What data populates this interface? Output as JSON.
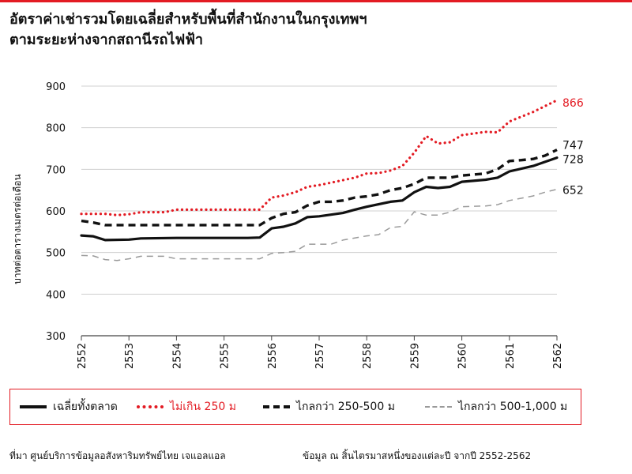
{
  "header": {
    "title_line1": "อัตราค่าเช่ารวมโดยเฉลี่ยสำหรับพื้นที่สำนักงานในกรุงเทพฯ",
    "title_line2": "ตามระยะห่างจากสถานีรถไฟฟ้า"
  },
  "colors": {
    "accent_red": "#e31b23",
    "black": "#111111",
    "gray": "#9a9a9a"
  },
  "chart_data": {
    "type": "line",
    "title": "อัตราค่าเช่ารวมโดยเฉลี่ยสำหรับพื้นที่สำนักงานในกรุงเทพฯ ตามระยะห่างจากสถานีรถไฟฟ้า",
    "ylabel": "บาทต่อตารางเมตรต่อเดือน",
    "xlabel": "",
    "ylim": [
      300,
      900
    ],
    "yticks": [
      300,
      400,
      500,
      600,
      700,
      800,
      900
    ],
    "xlim": [
      2552,
      2562
    ],
    "xticks": [
      "2552",
      "2553",
      "2554",
      "2555",
      "2556",
      "2557",
      "2558",
      "2559",
      "2560",
      "2561",
      "2562"
    ],
    "grid": true,
    "legend_position": "bottom",
    "series": [
      {
        "name": "เฉลี่ยทั้งตลาด",
        "color": "#111111",
        "style": "solid",
        "end_label": "728",
        "x": [
          2552,
          2552.25,
          2552.5,
          2553,
          2553.25,
          2554,
          2555,
          2555.5,
          2555.75,
          2556,
          2556.25,
          2556.5,
          2556.75,
          2557,
          2557.5,
          2557.75,
          2558,
          2558.5,
          2558.75,
          2559,
          2559.25,
          2559.5,
          2559.75,
          2560,
          2560.5,
          2560.75,
          2561,
          2561.5,
          2561.75,
          2562
        ],
        "y": [
          541,
          539,
          530,
          531,
          534,
          535,
          535,
          535,
          536,
          558,
          562,
          570,
          585,
          587,
          595,
          603,
          610,
          622,
          625,
          645,
          658,
          655,
          658,
          670,
          675,
          680,
          695,
          708,
          718,
          728
        ]
      },
      {
        "name": "ไม่เกิน 250 ม",
        "color": "#e31b23",
        "style": "dotted",
        "end_label": "866",
        "x": [
          2552,
          2552.25,
          2552.5,
          2552.75,
          2553,
          2553.25,
          2553.75,
          2554,
          2555,
          2555.5,
          2555.75,
          2556,
          2556.25,
          2556.5,
          2556.75,
          2557,
          2557.25,
          2557.75,
          2558,
          2558.25,
          2558.5,
          2558.75,
          2559,
          2559.25,
          2559.5,
          2559.75,
          2560,
          2560.5,
          2560.75,
          2561,
          2561.5,
          2561.75,
          2562
        ],
        "y": [
          593,
          593,
          593,
          590,
          592,
          597,
          597,
          603,
          603,
          603,
          603,
          632,
          637,
          645,
          658,
          662,
          668,
          680,
          690,
          691,
          697,
          708,
          740,
          780,
          762,
          765,
          782,
          790,
          789,
          815,
          838,
          852,
          866
        ]
      },
      {
        "name": "ไกลกว่า 250-500 ม",
        "color": "#111111",
        "style": "dashed",
        "end_label": "747",
        "x": [
          2552,
          2552.25,
          2552.5,
          2553,
          2554,
          2555,
          2555.75,
          2556,
          2556.25,
          2556.5,
          2556.75,
          2557,
          2557.25,
          2557.5,
          2557.75,
          2558,
          2558.25,
          2558.5,
          2558.75,
          2559,
          2559.25,
          2559.75,
          2560,
          2560.5,
          2560.75,
          2561,
          2561.25,
          2561.5,
          2561.75,
          2562
        ],
        "y": [
          576,
          572,
          566,
          566,
          566,
          566,
          566,
          583,
          593,
          597,
          613,
          622,
          622,
          625,
          632,
          635,
          640,
          650,
          655,
          665,
          680,
          680,
          685,
          690,
          700,
          720,
          722,
          725,
          733,
          747
        ]
      },
      {
        "name": "ไกลกว่า 500-1,000 ม",
        "color": "#9a9a9a",
        "style": "dashed-light",
        "end_label": "652",
        "x": [
          2552,
          2552.25,
          2552.5,
          2552.75,
          2553,
          2553.25,
          2553.75,
          2554,
          2555,
          2555.75,
          2556,
          2556.25,
          2556.5,
          2556.75,
          2557,
          2557.25,
          2557.5,
          2557.75,
          2558,
          2558.25,
          2558.5,
          2558.75,
          2559,
          2559.25,
          2559.5,
          2559.75,
          2560,
          2560.5,
          2560.75,
          2561,
          2561.5,
          2561.75,
          2562
        ],
        "y": [
          493,
          492,
          483,
          481,
          485,
          491,
          491,
          485,
          485,
          485,
          498,
          500,
          503,
          520,
          520,
          520,
          530,
          535,
          540,
          543,
          560,
          563,
          598,
          590,
          590,
          597,
          610,
          612,
          615,
          625,
          636,
          645,
          652
        ]
      }
    ]
  },
  "legend": {
    "items": [
      {
        "label": "เฉลี่ยทั้งตลาด"
      },
      {
        "label": "ไม่เกิน 250 ม"
      },
      {
        "label": "ไกลกว่า 250-500 ม"
      },
      {
        "label": "ไกลกว่า 500-1,000 ม"
      }
    ]
  },
  "footer": {
    "source": "ที่มา ศูนย์บริการข้อมูลอสังหาริมทรัพย์ไทย เจแอลแอล",
    "note": "ข้อมูล ณ สิ้นไตรมาสหนึ่งของแต่ละปี จากปี 2552-2562"
  }
}
